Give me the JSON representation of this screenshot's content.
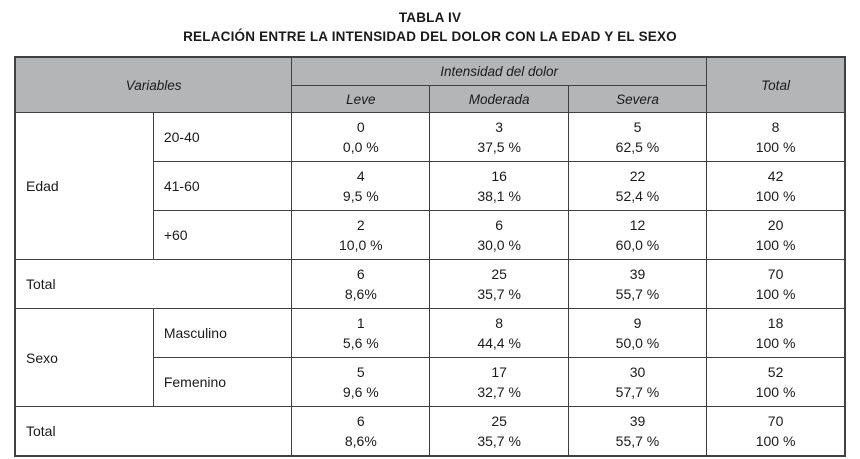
{
  "page": {
    "title": "TABLA IV",
    "subtitle": "RELACIÓN ENTRE LA INTENSIDAD DEL DOLOR CON LA EDAD Y EL SEXO"
  },
  "colors": {
    "header_bg": "#b4b5b7",
    "border": "#404042"
  },
  "table": {
    "header": {
      "variables": "Variables",
      "intensity": "Intensidad del dolor",
      "levels": [
        "Leve",
        "Moderada",
        "Severa"
      ],
      "total": "Total"
    },
    "sections": [
      {
        "group": "Edad",
        "rows": [
          {
            "label": "20-40",
            "leve": [
              "0",
              "0,0 %"
            ],
            "moderada": [
              "3",
              "37,5 %"
            ],
            "severa": [
              "5",
              "62,5 %"
            ],
            "total": [
              "8",
              "100 %"
            ]
          },
          {
            "label": "41-60",
            "leve": [
              "4",
              "9,5 %"
            ],
            "moderada": [
              "16",
              "38,1 %"
            ],
            "severa": [
              "22",
              "52,4 %"
            ],
            "total": [
              "42",
              "100 %"
            ]
          },
          {
            "label": "+60",
            "leve": [
              "2",
              "10,0 %"
            ],
            "moderada": [
              "6",
              "30,0 %"
            ],
            "severa": [
              "12",
              "60,0 %"
            ],
            "total": [
              "20",
              "100 %"
            ]
          }
        ],
        "totals": {
          "label": "Total",
          "leve": [
            "6",
            "8,6%"
          ],
          "moderada": [
            "25",
            "35,7 %"
          ],
          "severa": [
            "39",
            "55,7 %"
          ],
          "total": [
            "70",
            "100 %"
          ]
        }
      },
      {
        "group": "Sexo",
        "rows": [
          {
            "label": "Masculino",
            "leve": [
              "1",
              "5,6 %"
            ],
            "moderada": [
              "8",
              "44,4 %"
            ],
            "severa": [
              "9",
              "50,0 %"
            ],
            "total": [
              "18",
              "100 %"
            ]
          },
          {
            "label": "Femenino",
            "leve": [
              "5",
              "9,6 %"
            ],
            "moderada": [
              "17",
              "32,7 %"
            ],
            "severa": [
              "30",
              "57,7 %"
            ],
            "total": [
              "52",
              "100 %"
            ]
          }
        ],
        "totals": {
          "label": "Total",
          "leve": [
            "6",
            "8,6%"
          ],
          "moderada": [
            "25",
            "35,7 %"
          ],
          "severa": [
            "39",
            "55,7 %"
          ],
          "total": [
            "70",
            "100 %"
          ]
        }
      }
    ]
  }
}
